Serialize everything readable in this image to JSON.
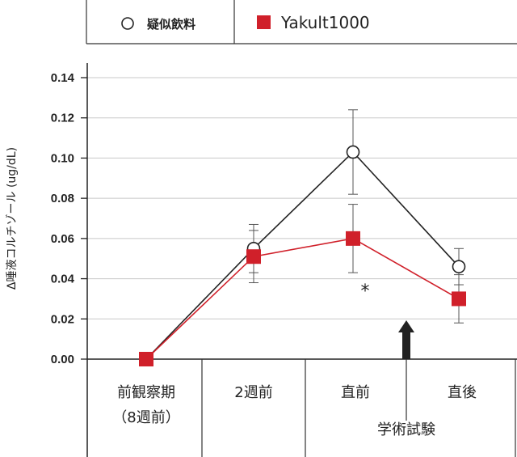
{
  "chart_data": {
    "type": "line",
    "title": "",
    "ylabel": "Δ唾液コルチゾール (ug/dL)",
    "xlabel": "",
    "ylim": [
      0,
      0.14
    ],
    "yticks": [
      0.0,
      0.02,
      0.04,
      0.06,
      0.08,
      0.1,
      0.12,
      0.14
    ],
    "ytick_labels": [
      "0.00",
      "0.02",
      "0.04",
      "0.06",
      "0.08",
      "0.10",
      "0.12",
      "0.14"
    ],
    "categories": [
      "前観察期（8週前）",
      "2週前",
      "直前",
      "直後"
    ],
    "category_labels": [
      [
        "前観察期",
        "（8週前）"
      ],
      [
        "2週前"
      ],
      [
        "直前"
      ],
      [
        "直後"
      ]
    ],
    "group_label": "学術試験",
    "series": [
      {
        "name": "疑似飲料",
        "marker": "circle-open",
        "color": "#222222",
        "values": [
          0.0,
          0.055,
          0.103,
          0.046
        ],
        "error": [
          0.0,
          0.012,
          0.021,
          0.009
        ]
      },
      {
        "name": "Yakult1000",
        "marker": "square",
        "color": "#d0202a",
        "values": [
          0.0,
          0.051,
          0.06,
          0.03
        ],
        "error": [
          0.0,
          0.013,
          0.017,
          0.012
        ]
      }
    ],
    "annotations": [
      {
        "text": "*",
        "category_index": 2,
        "y": 0.035
      }
    ],
    "legend_position": "top",
    "grid": true,
    "arrow_at_category": 2.5
  }
}
